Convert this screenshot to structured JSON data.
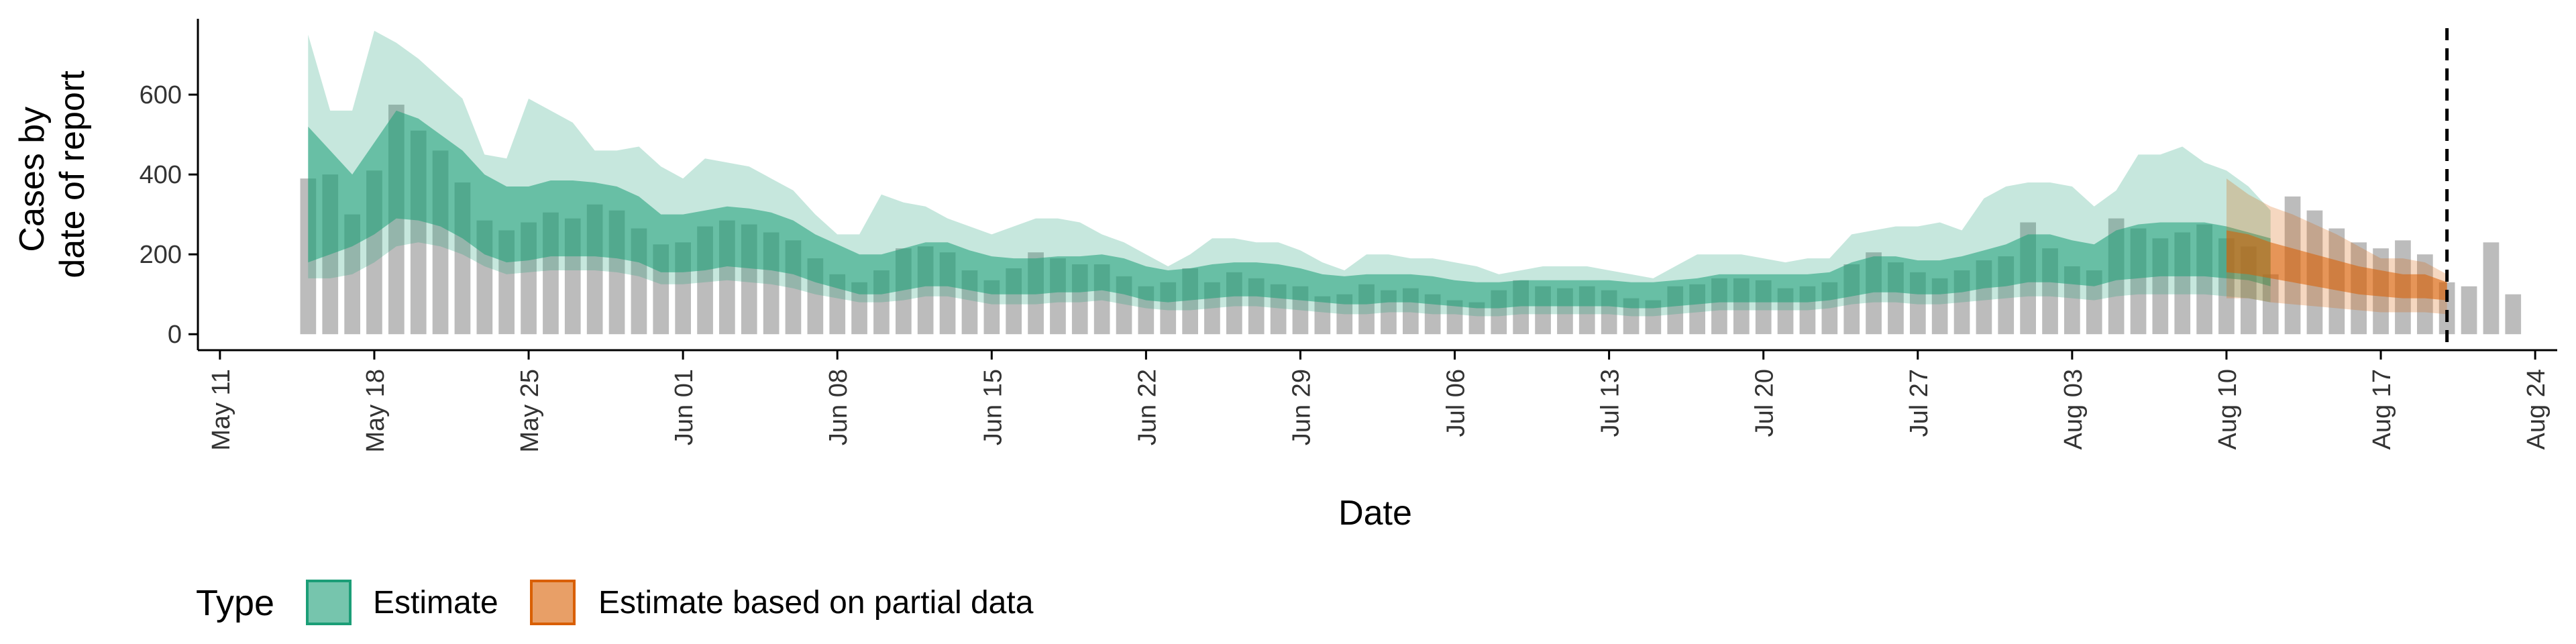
{
  "chart_data": {
    "type": "area",
    "xlabel": "Date",
    "ylabel_lines": [
      "Cases by",
      "date of report"
    ],
    "x_range": [
      "2020-05-10",
      "2020-08-25"
    ],
    "ylim": [
      -40,
      790
    ],
    "y_ticks": [
      0,
      200,
      400,
      600
    ],
    "x_ticks": [
      {
        "date": "2020-05-11",
        "label": "May 11"
      },
      {
        "date": "2020-05-18",
        "label": "May 18"
      },
      {
        "date": "2020-05-25",
        "label": "May 25"
      },
      {
        "date": "2020-06-01",
        "label": "Jun 01"
      },
      {
        "date": "2020-06-08",
        "label": "Jun 08"
      },
      {
        "date": "2020-06-15",
        "label": "Jun 15"
      },
      {
        "date": "2020-06-22",
        "label": "Jun 22"
      },
      {
        "date": "2020-06-29",
        "label": "Jun 29"
      },
      {
        "date": "2020-07-06",
        "label": "Jul 06"
      },
      {
        "date": "2020-07-13",
        "label": "Jul 13"
      },
      {
        "date": "2020-07-20",
        "label": "Jul 20"
      },
      {
        "date": "2020-07-27",
        "label": "Jul 27"
      },
      {
        "date": "2020-08-03",
        "label": "Aug 03"
      },
      {
        "date": "2020-08-10",
        "label": "Aug 10"
      },
      {
        "date": "2020-08-17",
        "label": "Aug 17"
      },
      {
        "date": "2020-08-24",
        "label": "Aug 24"
      }
    ],
    "vline_date": "2020-08-20",
    "grid": false,
    "legend": {
      "title": "Type",
      "position": "bottom-left",
      "entries": [
        {
          "label": "Estimate",
          "color": "#1b9e77"
        },
        {
          "label": "Estimate based on partial data",
          "color": "#d95f02"
        }
      ]
    },
    "bar_color": "#a6a6a6",
    "reported_cases": {
      "start_date": "2020-05-15",
      "values": [
        390,
        400,
        300,
        410,
        575,
        510,
        460,
        380,
        285,
        260,
        280,
        305,
        290,
        325,
        310,
        265,
        225,
        230,
        270,
        285,
        275,
        255,
        235,
        190,
        150,
        130,
        160,
        215,
        220,
        205,
        160,
        135,
        165,
        205,
        190,
        175,
        175,
        145,
        120,
        130,
        165,
        130,
        155,
        140,
        125,
        120,
        95,
        100,
        125,
        110,
        115,
        100,
        85,
        80,
        110,
        135,
        120,
        115,
        120,
        110,
        90,
        85,
        120,
        125,
        140,
        140,
        135,
        115,
        120,
        130,
        175,
        205,
        180,
        155,
        140,
        160,
        185,
        195,
        280,
        215,
        170,
        160,
        290,
        265,
        240,
        255,
        275,
        240,
        220,
        150,
        345,
        310,
        265,
        230,
        215,
        235,
        200,
        130,
        120,
        230,
        100
      ]
    },
    "series": [
      {
        "name": "Estimate",
        "color": "#1b9e77",
        "start_date": "2020-05-15",
        "median": [
          350,
          320,
          270,
          300,
          360,
          350,
          330,
          300,
          260,
          230,
          230,
          245,
          250,
          245,
          240,
          225,
          195,
          195,
          200,
          210,
          205,
          200,
          185,
          165,
          150,
          130,
          130,
          140,
          150,
          150,
          140,
          130,
          125,
          125,
          130,
          130,
          135,
          125,
          110,
          105,
          110,
          115,
          120,
          120,
          115,
          110,
          100,
          95,
          100,
          100,
          100,
          95,
          90,
          85,
          85,
          90,
          90,
          90,
          90,
          90,
          85,
          85,
          90,
          95,
          100,
          100,
          100,
          100,
          100,
          105,
          120,
          130,
          130,
          125,
          125,
          130,
          140,
          150,
          165,
          165,
          155,
          150,
          170,
          180,
          185,
          185,
          185,
          180,
          170,
          160
        ],
        "lower_50": [
          180,
          200,
          220,
          250,
          290,
          285,
          270,
          240,
          200,
          180,
          185,
          195,
          195,
          195,
          190,
          180,
          155,
          155,
          160,
          170,
          165,
          160,
          150,
          130,
          115,
          100,
          100,
          110,
          120,
          120,
          110,
          100,
          100,
          100,
          105,
          105,
          110,
          100,
          85,
          80,
          85,
          90,
          95,
          95,
          90,
          85,
          80,
          75,
          75,
          80,
          80,
          75,
          70,
          65,
          65,
          70,
          70,
          70,
          70,
          70,
          65,
          65,
          70,
          75,
          80,
          80,
          80,
          80,
          80,
          85,
          95,
          105,
          105,
          100,
          100,
          105,
          115,
          120,
          130,
          130,
          125,
          120,
          135,
          140,
          145,
          145,
          145,
          140,
          135,
          120
        ],
        "upper_50": [
          520,
          460,
          400,
          480,
          560,
          540,
          500,
          460,
          400,
          370,
          370,
          385,
          385,
          380,
          370,
          345,
          300,
          300,
          310,
          320,
          315,
          305,
          285,
          250,
          225,
          200,
          200,
          215,
          230,
          230,
          210,
          195,
          190,
          190,
          195,
          195,
          200,
          190,
          170,
          160,
          165,
          175,
          180,
          180,
          175,
          165,
          150,
          145,
          150,
          150,
          150,
          145,
          135,
          130,
          130,
          135,
          135,
          135,
          135,
          135,
          130,
          130,
          135,
          140,
          150,
          150,
          150,
          150,
          150,
          155,
          180,
          195,
          195,
          185,
          185,
          195,
          210,
          225,
          250,
          250,
          235,
          225,
          260,
          275,
          280,
          280,
          280,
          270,
          255,
          240
        ],
        "lower_90": [
          140,
          140,
          150,
          180,
          220,
          230,
          220,
          200,
          170,
          150,
          155,
          160,
          160,
          160,
          155,
          145,
          125,
          125,
          130,
          135,
          130,
          125,
          115,
          100,
          90,
          80,
          80,
          85,
          95,
          95,
          85,
          75,
          75,
          75,
          80,
          80,
          85,
          75,
          65,
          60,
          60,
          65,
          70,
          70,
          65,
          60,
          55,
          50,
          50,
          55,
          55,
          50,
          50,
          45,
          45,
          50,
          50,
          50,
          50,
          50,
          45,
          45,
          50,
          55,
          60,
          60,
          60,
          60,
          60,
          65,
          75,
          80,
          80,
          75,
          75,
          80,
          85,
          90,
          95,
          95,
          90,
          85,
          95,
          100,
          100,
          100,
          100,
          95,
          90,
          80
        ],
        "upper_90": [
          750,
          560,
          560,
          760,
          730,
          690,
          640,
          590,
          450,
          440,
          590,
          560,
          530,
          460,
          460,
          470,
          420,
          390,
          440,
          430,
          420,
          390,
          360,
          300,
          250,
          250,
          350,
          330,
          320,
          290,
          270,
          250,
          270,
          290,
          290,
          280,
          250,
          230,
          200,
          170,
          200,
          240,
          240,
          230,
          230,
          210,
          180,
          160,
          200,
          200,
          190,
          190,
          180,
          170,
          150,
          160,
          170,
          170,
          170,
          160,
          150,
          140,
          170,
          200,
          200,
          200,
          190,
          180,
          190,
          190,
          250,
          260,
          270,
          270,
          280,
          260,
          340,
          370,
          380,
          380,
          370,
          320,
          360,
          450,
          450,
          470,
          430,
          410,
          370,
          310
        ]
      },
      {
        "name": "Estimate based on partial data",
        "color": "#d95f02",
        "start_date": "2020-08-10",
        "median": [
          190,
          185,
          175,
          165,
          155,
          145,
          135,
          130,
          120,
          120,
          110
        ],
        "lower_50": [
          155,
          150,
          140,
          130,
          120,
          110,
          100,
          95,
          90,
          90,
          85
        ],
        "upper_50": [
          260,
          250,
          230,
          215,
          200,
          185,
          170,
          160,
          150,
          150,
          130
        ],
        "lower_90": [
          90,
          90,
          80,
          75,
          70,
          65,
          60,
          55,
          55,
          55,
          50
        ],
        "upper_90": [
          390,
          350,
          320,
          300,
          275,
          250,
          220,
          190,
          190,
          180,
          150
        ]
      }
    ]
  }
}
